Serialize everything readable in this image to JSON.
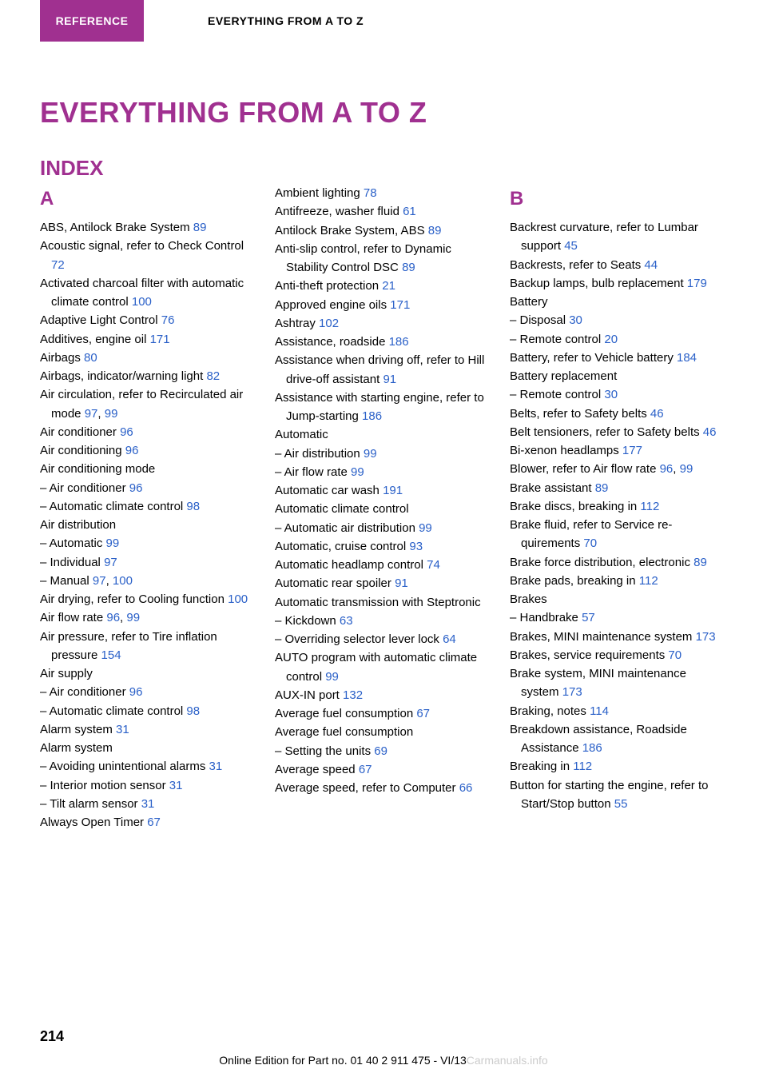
{
  "colors": {
    "accent": "#a03090",
    "link": "#2a60c8",
    "background": "#ffffff",
    "text": "#000000",
    "watermark": "#cccccc"
  },
  "typography": {
    "body_fontsize": 15,
    "title_fontsize": 36,
    "subtitle_fontsize": 26,
    "section_letter_fontsize": 24,
    "tab_fontsize": 14,
    "page_num_fontsize": 18,
    "footer_fontsize": 14
  },
  "header": {
    "tab_label": "REFERENCE",
    "section_label": "EVERYTHING FROM A TO Z"
  },
  "page": {
    "title": "EVERYTHING FROM A TO Z",
    "subtitle": "INDEX",
    "number": "214"
  },
  "footer": {
    "text_left": "Online Edition for Part no. 01 40 2 911 475 - VI/13",
    "watermark": "Carmanuals.info"
  },
  "index": {
    "col1": {
      "letter": "A",
      "entries": [
        {
          "text": "ABS, Antilock Brake Sys­tem ",
          "page": "89"
        },
        {
          "text": "Acoustic signal, refer to Check Control ",
          "page": "72"
        },
        {
          "text": "Activated charcoal filter with automatic climate con­trol ",
          "page": "100"
        },
        {
          "text": "Adaptive Light Control ",
          "page": "76"
        },
        {
          "text": "Additives, engine oil ",
          "page": "171"
        },
        {
          "text": "Airbags ",
          "page": "80"
        },
        {
          "text": "Airbags, indicator/warning light ",
          "page": "82"
        },
        {
          "text": "Air circulation, refer to Recir­culated air mode ",
          "page": "97",
          "page2": "99"
        },
        {
          "text": "Air conditioner ",
          "page": "96"
        },
        {
          "text": "Air conditioning ",
          "page": "96"
        },
        {
          "text": "Air conditioning mode"
        },
        {
          "text": "– Air conditioner ",
          "page": "96",
          "sub": true
        },
        {
          "text": "– Automatic climate con­trol ",
          "page": "98",
          "sub": true
        },
        {
          "text": "Air distribution"
        },
        {
          "text": "– Automatic ",
          "page": "99",
          "sub": true
        },
        {
          "text": "– Individual ",
          "page": "97",
          "sub": true
        },
        {
          "text": "– Manual ",
          "page": "97",
          "page2": "100",
          "sub": true
        },
        {
          "text": "Air drying, refer to Cooling function ",
          "page": "100"
        },
        {
          "text": "Air flow rate ",
          "page": "96",
          "page2": "99"
        },
        {
          "text": "Air pressure, refer to Tire infla­tion pressure ",
          "page": "154"
        },
        {
          "text": "Air supply"
        },
        {
          "text": "– Air conditioner ",
          "page": "96",
          "sub": true
        },
        {
          "text": "– Automatic climate con­trol ",
          "page": "98",
          "sub": true
        },
        {
          "text": "Alarm system ",
          "page": "31"
        },
        {
          "text": "Alarm system"
        },
        {
          "text": "– Avoiding unintentional alarms ",
          "page": "31",
          "sub": true
        },
        {
          "text": "– Interior motion sensor ",
          "page": "31",
          "sub": true
        },
        {
          "text": "– Tilt alarm sensor ",
          "page": "31",
          "sub": true
        },
        {
          "text": "Always Open Timer ",
          "page": "67"
        }
      ]
    },
    "col2": {
      "entries": [
        {
          "text": "Ambient lighting ",
          "page": "78"
        },
        {
          "text": "Antifreeze, washer fluid ",
          "page": "61"
        },
        {
          "text": "Antilock Brake System, ABS ",
          "page": "89"
        },
        {
          "text": "Anti-slip control, refer to Dy­namic Stability Control DSC ",
          "page": "89"
        },
        {
          "text": "Anti-theft protection ",
          "page": "21"
        },
        {
          "text": "Approved engine oils ",
          "page": "171"
        },
        {
          "text": "Ashtray ",
          "page": "102"
        },
        {
          "text": "Assistance, roadside ",
          "page": "186"
        },
        {
          "text": "Assistance when driving off, refer to Hill drive-off assis­tant ",
          "page": "91"
        },
        {
          "text": "Assistance with starting en­gine, refer to Jump-start­ing ",
          "page": "186"
        },
        {
          "text": "Automatic"
        },
        {
          "text": "– Air distribution ",
          "page": "99",
          "sub": true
        },
        {
          "text": "– Air flow rate ",
          "page": "99",
          "sub": true
        },
        {
          "text": "Automatic car wash ",
          "page": "191"
        },
        {
          "text": "Automatic climate control"
        },
        {
          "text": "– Automatic air distribution ",
          "page": "99",
          "sub": true
        },
        {
          "text": "Automatic, cruise control ",
          "page": "93"
        },
        {
          "text": "Automatic headlamp con­trol ",
          "page": "74"
        },
        {
          "text": "Automatic rear spoiler ",
          "page": "91"
        },
        {
          "text": "Automatic transmission with Steptronic"
        },
        {
          "text": "– Kickdown ",
          "page": "63",
          "sub": true
        },
        {
          "text": "– Overriding selector lever lock ",
          "page": "64",
          "sub": true
        },
        {
          "text": "AUTO program with auto­matic climate control ",
          "page": "99"
        },
        {
          "text": "AUX-IN port ",
          "page": "132"
        },
        {
          "text": "Average fuel consumption ",
          "page": "67"
        },
        {
          "text": "Average fuel consumption"
        },
        {
          "text": "– Setting the units ",
          "page": "69",
          "sub": true
        },
        {
          "text": "Average speed ",
          "page": "67"
        },
        {
          "text": "Average speed, refer to Com­puter ",
          "page": "66"
        }
      ]
    },
    "col3": {
      "letter": "B",
      "entries": [
        {
          "text": "Backrest curvature, refer to Lumbar support ",
          "page": "45"
        },
        {
          "text": "Backrests, refer to Seats ",
          "page": "44"
        },
        {
          "text": "Backup lamps, bulb replace­ment ",
          "page": "179"
        },
        {
          "text": "Battery"
        },
        {
          "text": "– Disposal ",
          "page": "30",
          "sub": true
        },
        {
          "text": "– Remote control ",
          "page": "20",
          "sub": true
        },
        {
          "text": "Battery, refer to Vehicle bat­tery ",
          "page": "184"
        },
        {
          "text": "Battery replacement"
        },
        {
          "text": "– Remote control ",
          "page": "30",
          "sub": true
        },
        {
          "text": "Belts, refer to Safety belts ",
          "page": "46"
        },
        {
          "text": "Belt tensioners, refer to Safety belts ",
          "page": "46"
        },
        {
          "text": "Bi-xenon headlamps ",
          "page": "177"
        },
        {
          "text": "Blower, refer to Air flow rate ",
          "page": "96",
          "page2": "99"
        },
        {
          "text": "Brake assistant ",
          "page": "89"
        },
        {
          "text": "Brake discs, breaking in ",
          "page": "112"
        },
        {
          "text": "Brake fluid, refer to Service re­quirements ",
          "page": "70"
        },
        {
          "text": "Brake force distribution, elec­tronic ",
          "page": "89"
        },
        {
          "text": "Brake pads, breaking in ",
          "page": "112"
        },
        {
          "text": "Brakes"
        },
        {
          "text": "– Handbrake ",
          "page": "57",
          "sub": true
        },
        {
          "text": "Brakes, MINI maintenance system ",
          "page": "173"
        },
        {
          "text": "Brakes, service require­ments ",
          "page": "70"
        },
        {
          "text": "Brake system, MINI mainte­nance system ",
          "page": "173"
        },
        {
          "text": "Braking, notes ",
          "page": "114"
        },
        {
          "text": "Breakdown assistance, Road­side Assistance ",
          "page": "186"
        },
        {
          "text": "Breaking in ",
          "page": "112"
        },
        {
          "text": "Button for starting the engine, refer to Start/Stop button ",
          "page": "55"
        }
      ]
    }
  }
}
